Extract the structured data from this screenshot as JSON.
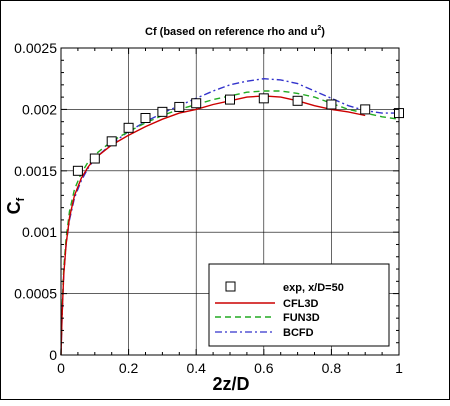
{
  "chart_data": {
    "type": "line",
    "title": "Cf (based on reference rho and u",
    "title_superscript": "2",
    "title_suffix": ")",
    "xlabel": "2z/D",
    "ylabel_main": "C",
    "ylabel_sub": "f",
    "xlim": [
      0,
      1
    ],
    "ylim": [
      0,
      0.0025
    ],
    "x_ticks": [
      0,
      0.2,
      0.4,
      0.6,
      0.8,
      1
    ],
    "x_tick_labels": [
      "0",
      "0.2",
      "0.4",
      "0.6",
      "0.8",
      "1"
    ],
    "y_ticks": [
      0,
      0.0005,
      0.001,
      0.0015,
      0.002,
      0.0025
    ],
    "y_tick_labels": [
      "0",
      "0.0005",
      "0.001",
      "0.0015",
      "0.002",
      "0.0025"
    ],
    "grid": true,
    "legend_position": "bottom-right",
    "series": [
      {
        "name": "exp, x/D=50",
        "style": "markers",
        "marker": "square",
        "color": "#000000",
        "x": [
          0.05,
          0.1,
          0.15,
          0.2,
          0.25,
          0.3,
          0.35,
          0.4,
          0.5,
          0.6,
          0.7,
          0.8,
          0.9,
          1.0
        ],
        "y": [
          0.0015,
          0.0016,
          0.00174,
          0.00185,
          0.00193,
          0.00198,
          0.00202,
          0.00205,
          0.00208,
          0.00209,
          0.00207,
          0.00204,
          0.002,
          0.00197
        ]
      },
      {
        "name": "CFL3D",
        "style": "solid",
        "color": "#cc0000",
        "x": [
          0,
          0.003,
          0.008,
          0.015,
          0.025,
          0.04,
          0.06,
          0.08,
          0.1,
          0.15,
          0.2,
          0.25,
          0.3,
          0.35,
          0.4,
          0.45,
          0.5,
          0.55,
          0.6,
          0.65,
          0.7,
          0.75,
          0.8,
          0.85,
          0.9
        ],
        "y": [
          0,
          0.0003,
          0.00065,
          0.0009,
          0.00112,
          0.0013,
          0.00144,
          0.00153,
          0.0016,
          0.00171,
          0.00179,
          0.00186,
          0.00192,
          0.00197,
          0.002,
          0.00204,
          0.00207,
          0.0021,
          0.00211,
          0.0021,
          0.00207,
          0.00203,
          0.002,
          0.00198,
          0.00195
        ]
      },
      {
        "name": "FUN3D",
        "style": "dashed",
        "color": "#22aa22",
        "x": [
          0,
          0.003,
          0.008,
          0.015,
          0.025,
          0.04,
          0.06,
          0.08,
          0.1,
          0.15,
          0.2,
          0.25,
          0.3,
          0.35,
          0.4,
          0.45,
          0.5,
          0.55,
          0.6,
          0.65,
          0.7,
          0.75,
          0.8,
          0.85,
          0.9,
          0.95,
          1.0
        ],
        "y": [
          0,
          0.00035,
          0.0007,
          0.00095,
          0.00117,
          0.00135,
          0.00148,
          0.00157,
          0.00163,
          0.00174,
          0.00182,
          0.00189,
          0.00195,
          0.002,
          0.00204,
          0.00208,
          0.00211,
          0.00214,
          0.00215,
          0.00215,
          0.00213,
          0.0021,
          0.00205,
          0.002,
          0.00197,
          0.00194,
          0.00192
        ]
      },
      {
        "name": "BCFD",
        "style": "dashdot",
        "color": "#3333cc",
        "x": [
          0,
          0.003,
          0.008,
          0.015,
          0.025,
          0.04,
          0.06,
          0.08,
          0.1,
          0.15,
          0.2,
          0.25,
          0.3,
          0.35,
          0.4,
          0.45,
          0.5,
          0.55,
          0.6,
          0.65,
          0.7,
          0.75,
          0.8,
          0.85,
          0.9,
          0.95,
          1.0
        ],
        "y": [
          0,
          0.0003,
          0.00065,
          0.0009,
          0.0011,
          0.00128,
          0.00142,
          0.00152,
          0.0016,
          0.00172,
          0.00182,
          0.0019,
          0.00197,
          0.00203,
          0.00209,
          0.00215,
          0.0022,
          0.00223,
          0.00225,
          0.00224,
          0.00221,
          0.00215,
          0.00209,
          0.00203,
          0.00199,
          0.00197,
          0.00197
        ]
      }
    ]
  }
}
